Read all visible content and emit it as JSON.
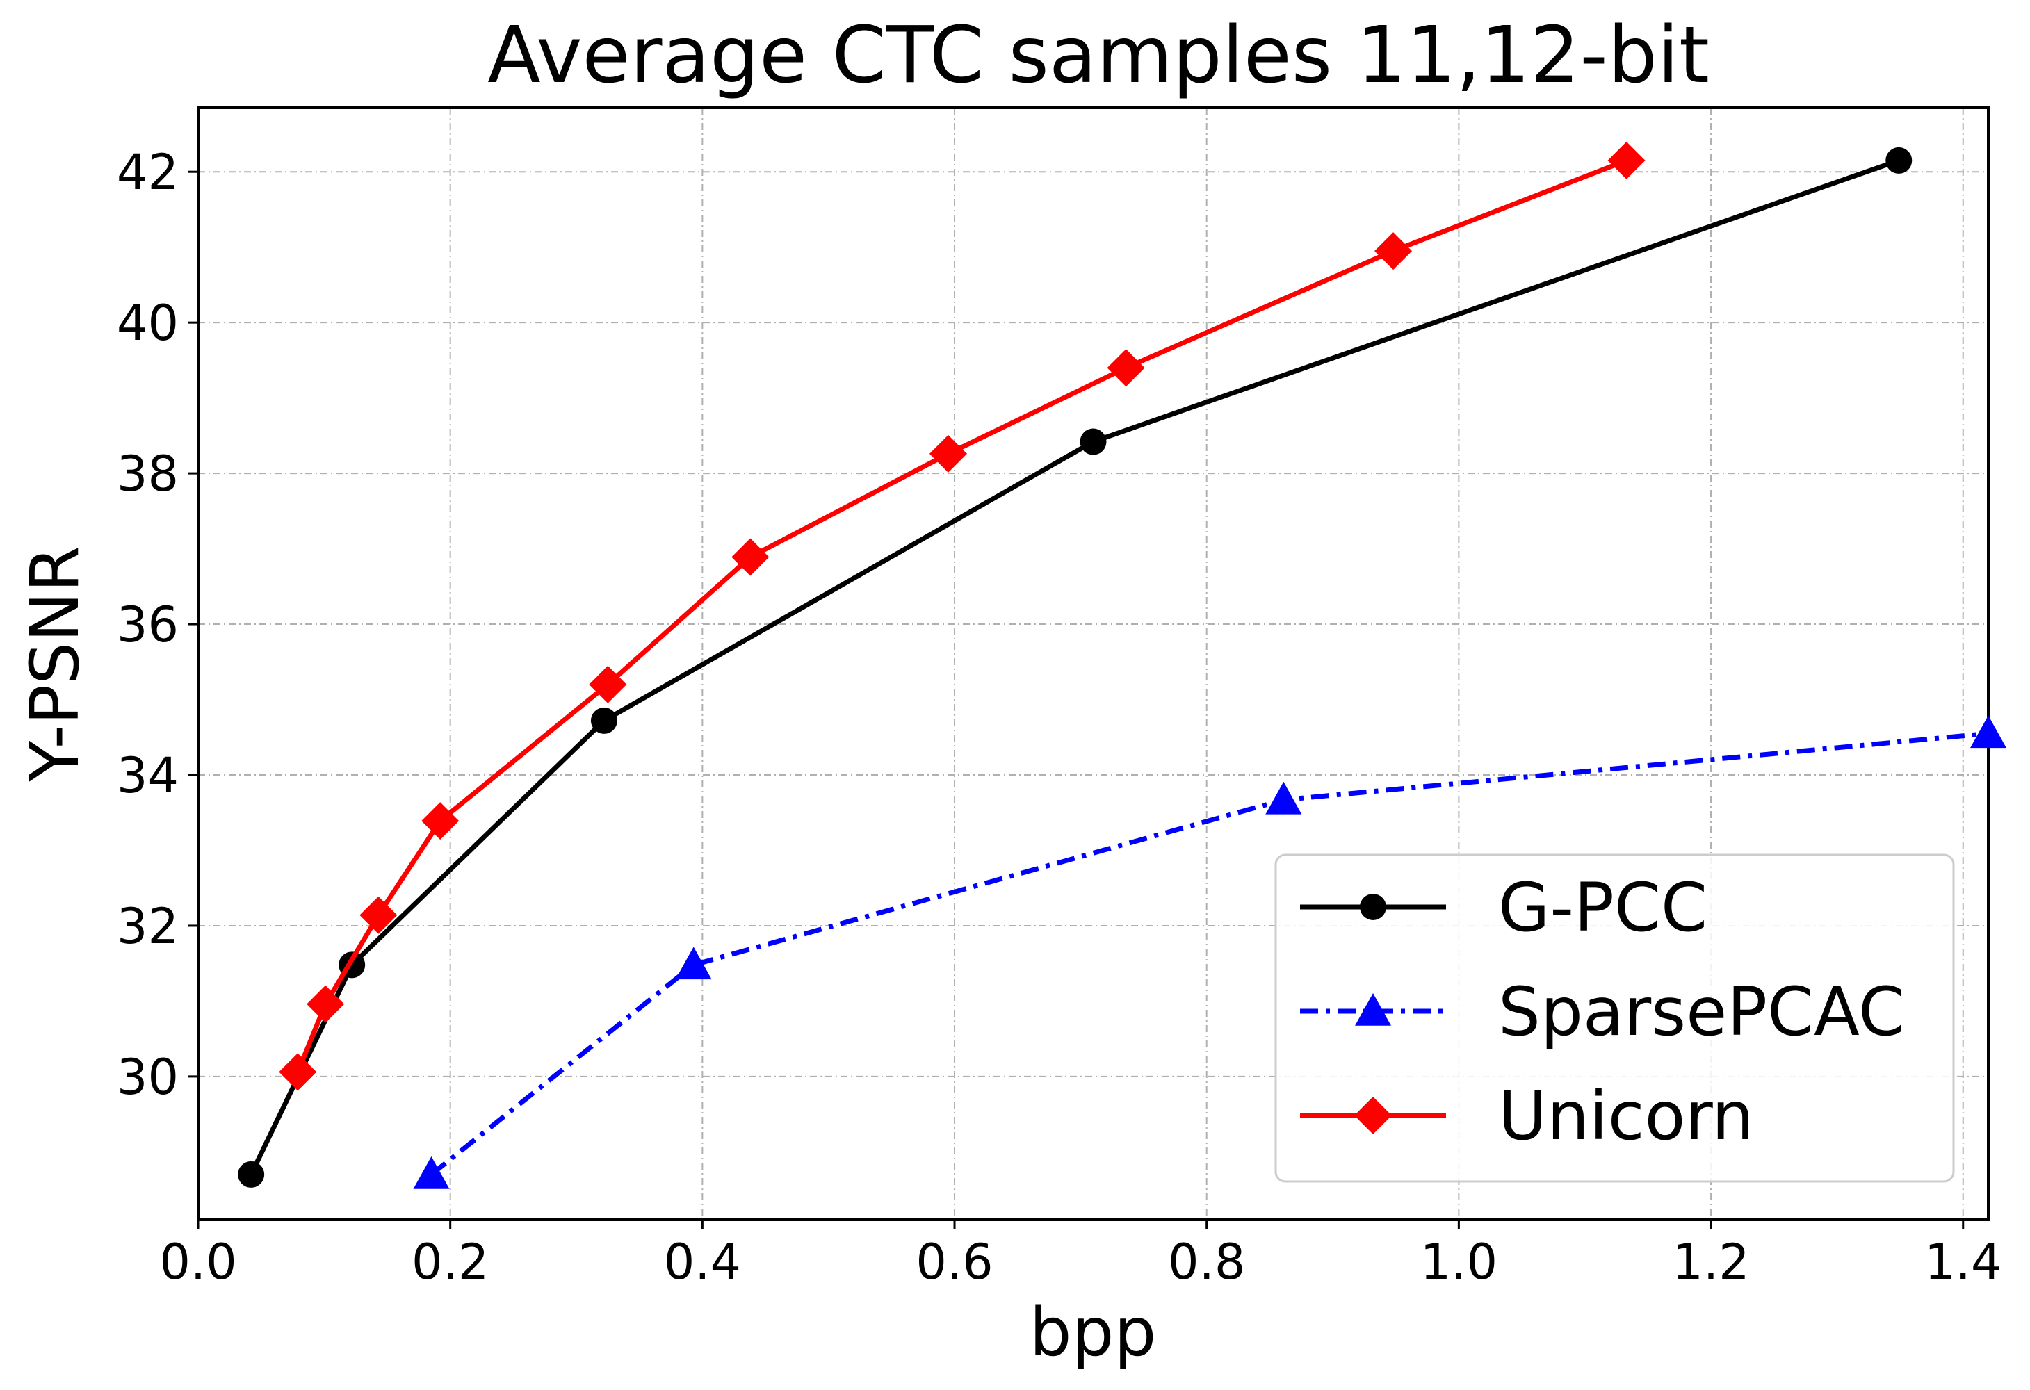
{
  "chart_data": {
    "type": "line",
    "title": "Average CTC samples 11,12-bit",
    "xlabel": "bpp",
    "ylabel": "Y-PSNR",
    "xlim": [
      0.0,
      1.42
    ],
    "ylim": [
      28.1,
      42.85
    ],
    "x_ticks": [
      0.0,
      0.2,
      0.4,
      0.6,
      0.8,
      1.0,
      1.2,
      1.4
    ],
    "x_tick_labels": [
      "0.0",
      "0.2",
      "0.4",
      "0.6",
      "0.8",
      "1.0",
      "1.2",
      "1.4"
    ],
    "y_ticks": [
      30,
      32,
      34,
      36,
      38,
      40,
      42
    ],
    "y_tick_labels": [
      "30",
      "32",
      "34",
      "36",
      "38",
      "40",
      "42"
    ],
    "grid": true,
    "legend_position": "lower-right",
    "series": [
      {
        "name": "G-PCC",
        "color": "#000000",
        "marker": "circle",
        "line_style": "solid",
        "x": [
          0.042,
          0.122,
          0.322,
          0.71,
          1.349
        ],
        "y": [
          28.7,
          31.48,
          34.72,
          38.42,
          42.15
        ]
      },
      {
        "name": "SparsePCAC",
        "color": "#0000ff",
        "marker": "triangle",
        "line_style": "dashdot",
        "x": [
          0.185,
          0.393,
          0.861,
          1.42
        ],
        "y": [
          28.7,
          31.48,
          33.67,
          34.55
        ]
      },
      {
        "name": "Unicorn",
        "color": "#ff0000",
        "marker": "diamond",
        "line_style": "solid",
        "x": [
          0.079,
          0.101,
          0.143,
          0.192,
          0.325,
          0.438,
          0.595,
          0.736,
          0.948,
          1.133
        ],
        "y": [
          30.06,
          30.96,
          32.14,
          33.39,
          35.2,
          36.89,
          38.26,
          39.4,
          40.95,
          42.15
        ]
      }
    ]
  }
}
